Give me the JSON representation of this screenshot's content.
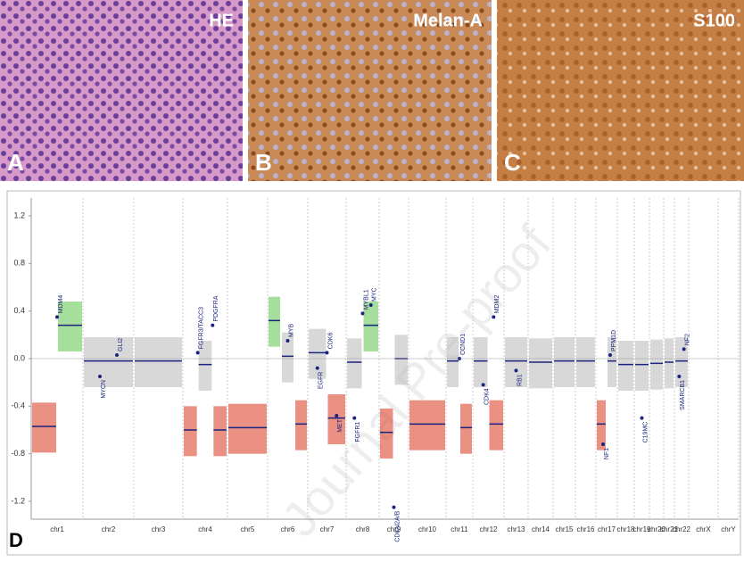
{
  "panels": [
    {
      "letter": "A",
      "stain": "HE"
    },
    {
      "letter": "B",
      "stain": "Melan-A"
    },
    {
      "letter": "C",
      "stain": "S100"
    }
  ],
  "chart_data": {
    "type": "copy-number",
    "panel_letter": "D",
    "watermark": "Journal Pre-proof",
    "ylim": [
      -1.35,
      1.35
    ],
    "yticks": [
      1.2,
      0.8,
      0.4,
      {
        "value": 0,
        "label": "0.0"
      },
      -0.4,
      -0.8,
      -1.2
    ],
    "gain_color": "#5cc24a",
    "loss_color": "#d9361f",
    "neutral_color": "#b8b8b8",
    "segment_color": "#1a237e",
    "chromosomes": [
      {
        "name": "chr1",
        "segments": [
          -0.57,
          0.28
        ],
        "genes": [
          {
            "label": "MDM4",
            "value": 0.35
          }
        ]
      },
      {
        "name": "chr2",
        "segments": [
          -0.02
        ],
        "genes": [
          {
            "label": "MYCN",
            "value": -0.15
          },
          {
            "label": "GLI2",
            "value": 0.03
          }
        ]
      },
      {
        "name": "chr3",
        "segments": [
          -0.02
        ],
        "genes": []
      },
      {
        "name": "chr4",
        "segments": [
          -0.6,
          -0.05,
          -0.6
        ],
        "genes": [
          {
            "label": "FGFR3/TACC3",
            "value": 0.05
          },
          {
            "label": "PDGFRA",
            "value": 0.28
          }
        ]
      },
      {
        "name": "chr5",
        "segments": [
          -0.58
        ],
        "genes": []
      },
      {
        "name": "chr6",
        "segments": [
          0.32,
          0.02,
          -0.55
        ],
        "genes": [
          {
            "label": "MYB",
            "value": 0.15
          }
        ]
      },
      {
        "name": "chr7",
        "segments": [
          0.05,
          -0.5
        ],
        "genes": [
          {
            "label": "EGFR",
            "value": -0.08
          },
          {
            "label": "CDK6",
            "value": 0.05
          },
          {
            "label": "MET",
            "value": -0.48
          }
        ]
      },
      {
        "name": "chr8",
        "segments": [
          -0.03,
          0.28
        ],
        "genes": [
          {
            "label": "FGFR1",
            "value": -0.5
          },
          {
            "label": "MYBL1",
            "value": 0.38
          },
          {
            "label": "MYC",
            "value": 0.45
          }
        ]
      },
      {
        "name": "chr9",
        "segments": [
          -0.62,
          0.0
        ],
        "genes": [
          {
            "label": "CDKN2A/B",
            "value": -1.25
          }
        ]
      },
      {
        "name": "chr10",
        "segments": [
          -0.55
        ],
        "genes": []
      },
      {
        "name": "chr11",
        "segments": [
          -0.02,
          -0.58
        ],
        "genes": [
          {
            "label": "CCND1",
            "value": 0.0
          }
        ]
      },
      {
        "name": "chr12",
        "segments": [
          -0.02,
          -0.55
        ],
        "genes": [
          {
            "label": "CDK4",
            "value": -0.22
          },
          {
            "label": "MDM2",
            "value": 0.35
          }
        ]
      },
      {
        "name": "chr13",
        "segments": [
          -0.02
        ],
        "genes": [
          {
            "label": "RB1",
            "value": -0.1
          }
        ]
      },
      {
        "name": "chr14",
        "segments": [
          -0.03
        ],
        "genes": []
      },
      {
        "name": "chr15",
        "segments": [
          -0.02
        ],
        "genes": []
      },
      {
        "name": "chr16",
        "segments": [
          -0.02
        ],
        "genes": []
      },
      {
        "name": "chr17",
        "segments": [
          -0.55,
          -0.02
        ],
        "genes": [
          {
            "label": "NF1",
            "value": -0.72
          },
          {
            "label": "PPM1D",
            "value": 0.03
          }
        ]
      },
      {
        "name": "chr18",
        "segments": [
          -0.05
        ],
        "genes": []
      },
      {
        "name": "chr19",
        "segments": [
          -0.05
        ],
        "genes": [
          {
            "label": "C19MC",
            "value": -0.5
          }
        ]
      },
      {
        "name": "chr20",
        "segments": [
          -0.04
        ],
        "genes": []
      },
      {
        "name": "chr21",
        "segments": [
          -0.03
        ],
        "genes": []
      },
      {
        "name": "chr22",
        "segments": [
          -0.02
        ],
        "genes": [
          {
            "label": "SMARCB1",
            "value": -0.15
          },
          {
            "label": "NF2",
            "value": 0.08
          }
        ]
      },
      {
        "name": "chrX",
        "segments": [],
        "genes": []
      },
      {
        "name": "chrY",
        "segments": [],
        "genes": []
      }
    ]
  }
}
